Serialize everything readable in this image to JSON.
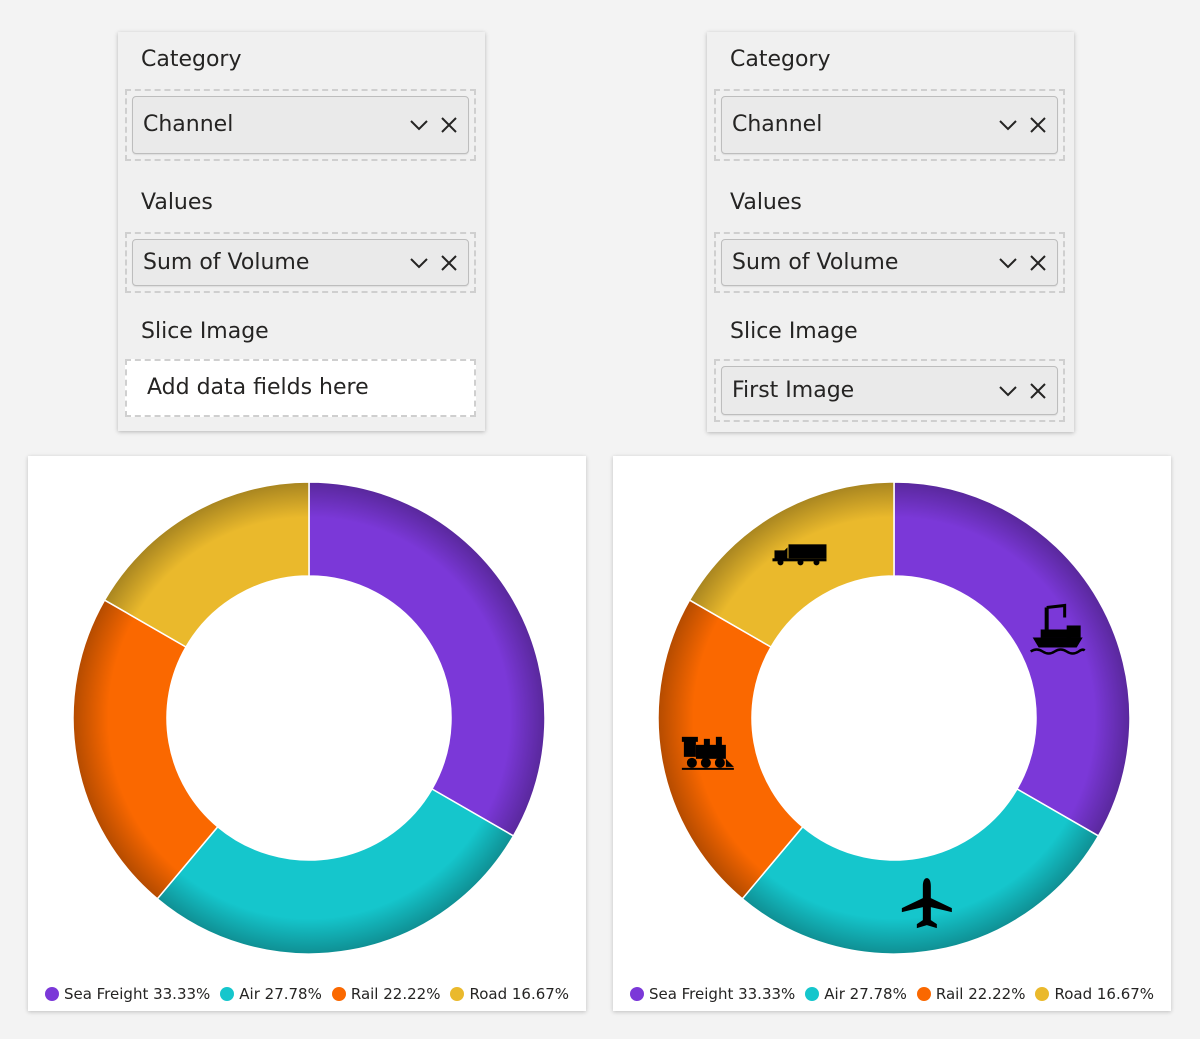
{
  "panels": [
    {
      "category_label": "Category",
      "category_field": "Channel",
      "values_label": "Values",
      "values_field": "Sum of Volume",
      "slice_image_label": "Slice Image",
      "slice_image_placeholder": "Add data fields here"
    },
    {
      "category_label": "Category",
      "category_field": "Channel",
      "values_label": "Values",
      "values_field": "Sum of Volume",
      "slice_image_label": "Slice Image",
      "slice_image_field": "First Image"
    }
  ],
  "chart_data": [
    {
      "type": "pie",
      "variant": "donut",
      "categories": [
        "Sea Freight",
        "Air",
        "Rail",
        "Road"
      ],
      "values": [
        33.33,
        27.78,
        22.22,
        16.67
      ],
      "colors": [
        "#7b38d8",
        "#15c6cc",
        "#fa6800",
        "#eab92c"
      ],
      "legend_labels": [
        "Sea Freight 33.33%",
        "Air 27.78%",
        "Rail 22.22%",
        "Road 16.67%"
      ],
      "legend_position": "bottom",
      "slice_images": false
    },
    {
      "type": "pie",
      "variant": "donut",
      "categories": [
        "Sea Freight",
        "Air",
        "Rail",
        "Road"
      ],
      "values": [
        33.33,
        27.78,
        22.22,
        16.67
      ],
      "colors": [
        "#7b38d8",
        "#15c6cc",
        "#fa6800",
        "#eab92c"
      ],
      "legend_labels": [
        "Sea Freight 33.33%",
        "Air 27.78%",
        "Rail 22.22%",
        "Road 16.67%"
      ],
      "legend_position": "bottom",
      "slice_images": true,
      "slice_icons": [
        "ship-crane-icon",
        "airplane-icon",
        "train-icon",
        "truck-icon"
      ]
    }
  ]
}
